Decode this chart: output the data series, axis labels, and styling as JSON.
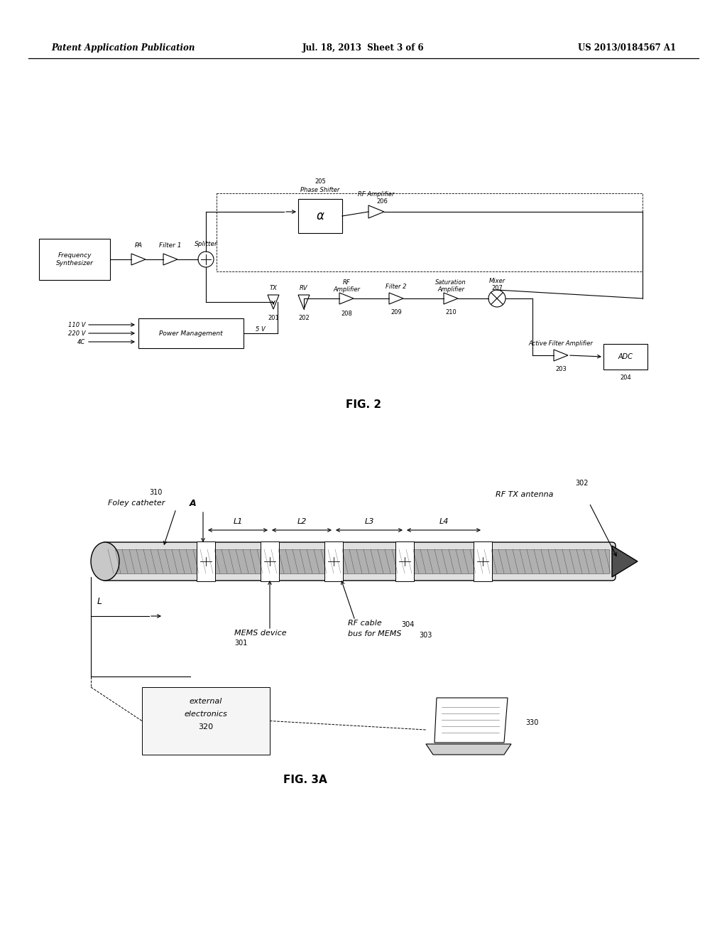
{
  "bg_color": "#ffffff",
  "header_left": "Patent Application Publication",
  "header_center": "Jul. 18, 2013  Sheet 3 of 6",
  "header_right": "US 2013/0184567 A1",
  "fig2_label": "FIG. 2",
  "fig3a_label": "FIG. 3A"
}
